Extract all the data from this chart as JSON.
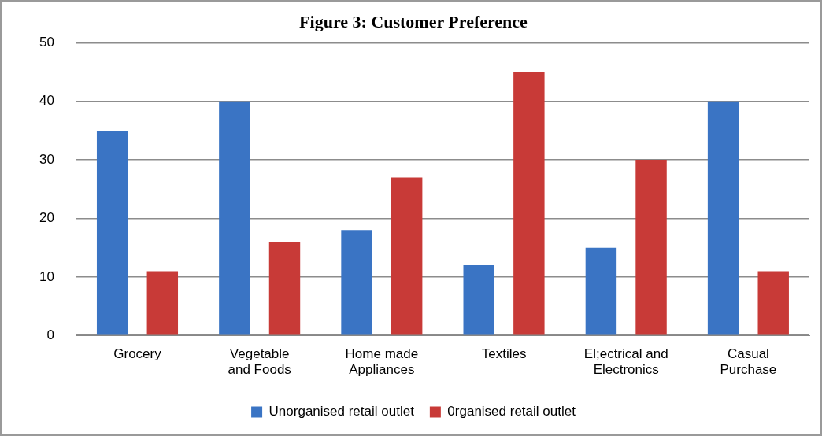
{
  "chart_data": {
    "type": "bar",
    "title": "Figure 3: Customer Preference",
    "categories": [
      "Grocery",
      "Vegetable and Foods",
      "Home made Appliances",
      "Textiles",
      "El;ectrical and Electronics",
      "Casual Purchase"
    ],
    "series": [
      {
        "name": "Unorganised retail outlet",
        "color": "#3a74c4",
        "values": [
          35,
          40,
          18,
          12,
          15,
          40
        ]
      },
      {
        "name": "0rganised retail outlet",
        "color": "#c83a37",
        "values": [
          11,
          16,
          27,
          45,
          30,
          11
        ]
      }
    ],
    "ylim": [
      0,
      50
    ],
    "yticks": [
      0,
      10,
      20,
      30,
      40,
      50
    ],
    "grid": "y",
    "legend": "bottom"
  }
}
